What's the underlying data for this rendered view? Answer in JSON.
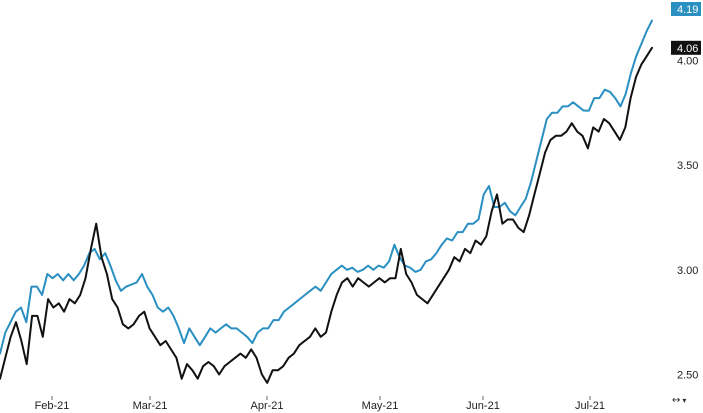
{
  "chart_data": {
    "type": "line",
    "title": "",
    "xlabel": "",
    "ylabel": "",
    "x_ticks": [
      "Feb-21",
      "Mar-21",
      "Apr-21",
      "May-21",
      "Jun-21",
      "Jul-21"
    ],
    "y_ticks": [
      "2.50",
      "3.00",
      "3.50",
      "4.00"
    ],
    "ylim": [
      2.45,
      4.25
    ],
    "grid": false,
    "legend": "none",
    "series": [
      {
        "color": "#2a8fc1",
        "last_value_label": "4.19",
        "values": [
          2.6,
          2.7,
          2.75,
          2.8,
          2.82,
          2.75,
          2.92,
          2.92,
          2.88,
          2.98,
          2.96,
          2.98,
          2.95,
          2.98,
          2.95,
          2.98,
          3.02,
          3.08,
          3.1,
          3.05,
          3.08,
          3.02,
          2.95,
          2.9,
          2.92,
          2.93,
          2.94,
          2.98,
          2.92,
          2.88,
          2.82,
          2.8,
          2.82,
          2.78,
          2.72,
          2.65,
          2.72,
          2.68,
          2.64,
          2.68,
          2.72,
          2.7,
          2.72,
          2.74,
          2.72,
          2.72,
          2.7,
          2.68,
          2.65,
          2.7,
          2.72,
          2.72,
          2.76,
          2.76,
          2.8,
          2.82,
          2.84,
          2.86,
          2.88,
          2.9,
          2.92,
          2.9,
          2.94,
          2.98,
          3.0,
          3.02,
          3.0,
          3.01,
          2.99,
          3.0,
          3.02,
          3.0,
          3.02,
          3.01,
          3.04,
          3.12,
          3.06,
          3.02,
          3.01,
          2.99,
          3.0,
          3.04,
          3.05,
          3.08,
          3.12,
          3.15,
          3.14,
          3.18,
          3.18,
          3.22,
          3.22,
          3.24,
          3.36,
          3.4,
          3.3,
          3.3,
          3.32,
          3.28,
          3.26,
          3.3,
          3.34,
          3.42,
          3.52,
          3.62,
          3.72,
          3.75,
          3.75,
          3.78,
          3.78,
          3.8,
          3.78,
          3.76,
          3.76,
          3.82,
          3.82,
          3.86,
          3.85,
          3.82,
          3.78,
          3.84,
          3.94,
          4.02,
          4.08,
          4.14,
          4.19
        ]
      },
      {
        "color": "#111111",
        "last_value_label": "4.06",
        "values": [
          2.48,
          2.58,
          2.68,
          2.75,
          2.66,
          2.55,
          2.78,
          2.78,
          2.68,
          2.86,
          2.82,
          2.84,
          2.8,
          2.86,
          2.84,
          2.88,
          2.96,
          3.1,
          3.22,
          3.06,
          2.98,
          2.86,
          2.82,
          2.74,
          2.72,
          2.74,
          2.78,
          2.8,
          2.72,
          2.68,
          2.64,
          2.66,
          2.62,
          2.58,
          2.48,
          2.55,
          2.52,
          2.48,
          2.54,
          2.56,
          2.54,
          2.5,
          2.54,
          2.56,
          2.58,
          2.6,
          2.58,
          2.62,
          2.58,
          2.5,
          2.46,
          2.52,
          2.52,
          2.54,
          2.58,
          2.6,
          2.64,
          2.66,
          2.68,
          2.72,
          2.68,
          2.7,
          2.8,
          2.88,
          2.94,
          2.96,
          2.92,
          2.96,
          2.94,
          2.92,
          2.94,
          2.96,
          2.94,
          2.96,
          2.96,
          3.1,
          2.98,
          2.94,
          2.88,
          2.86,
          2.84,
          2.88,
          2.92,
          2.96,
          3.0,
          3.06,
          3.04,
          3.1,
          3.08,
          3.14,
          3.12,
          3.16,
          3.28,
          3.36,
          3.22,
          3.24,
          3.24,
          3.2,
          3.18,
          3.26,
          3.36,
          3.46,
          3.56,
          3.62,
          3.64,
          3.64,
          3.66,
          3.7,
          3.66,
          3.64,
          3.58,
          3.68,
          3.66,
          3.72,
          3.7,
          3.66,
          3.62,
          3.68,
          3.82,
          3.92,
          3.98,
          4.02,
          4.06
        ]
      }
    ]
  },
  "toolbar": {
    "icon": "chart-options-icon",
    "glyph": "↔",
    "chevron": "▾"
  }
}
